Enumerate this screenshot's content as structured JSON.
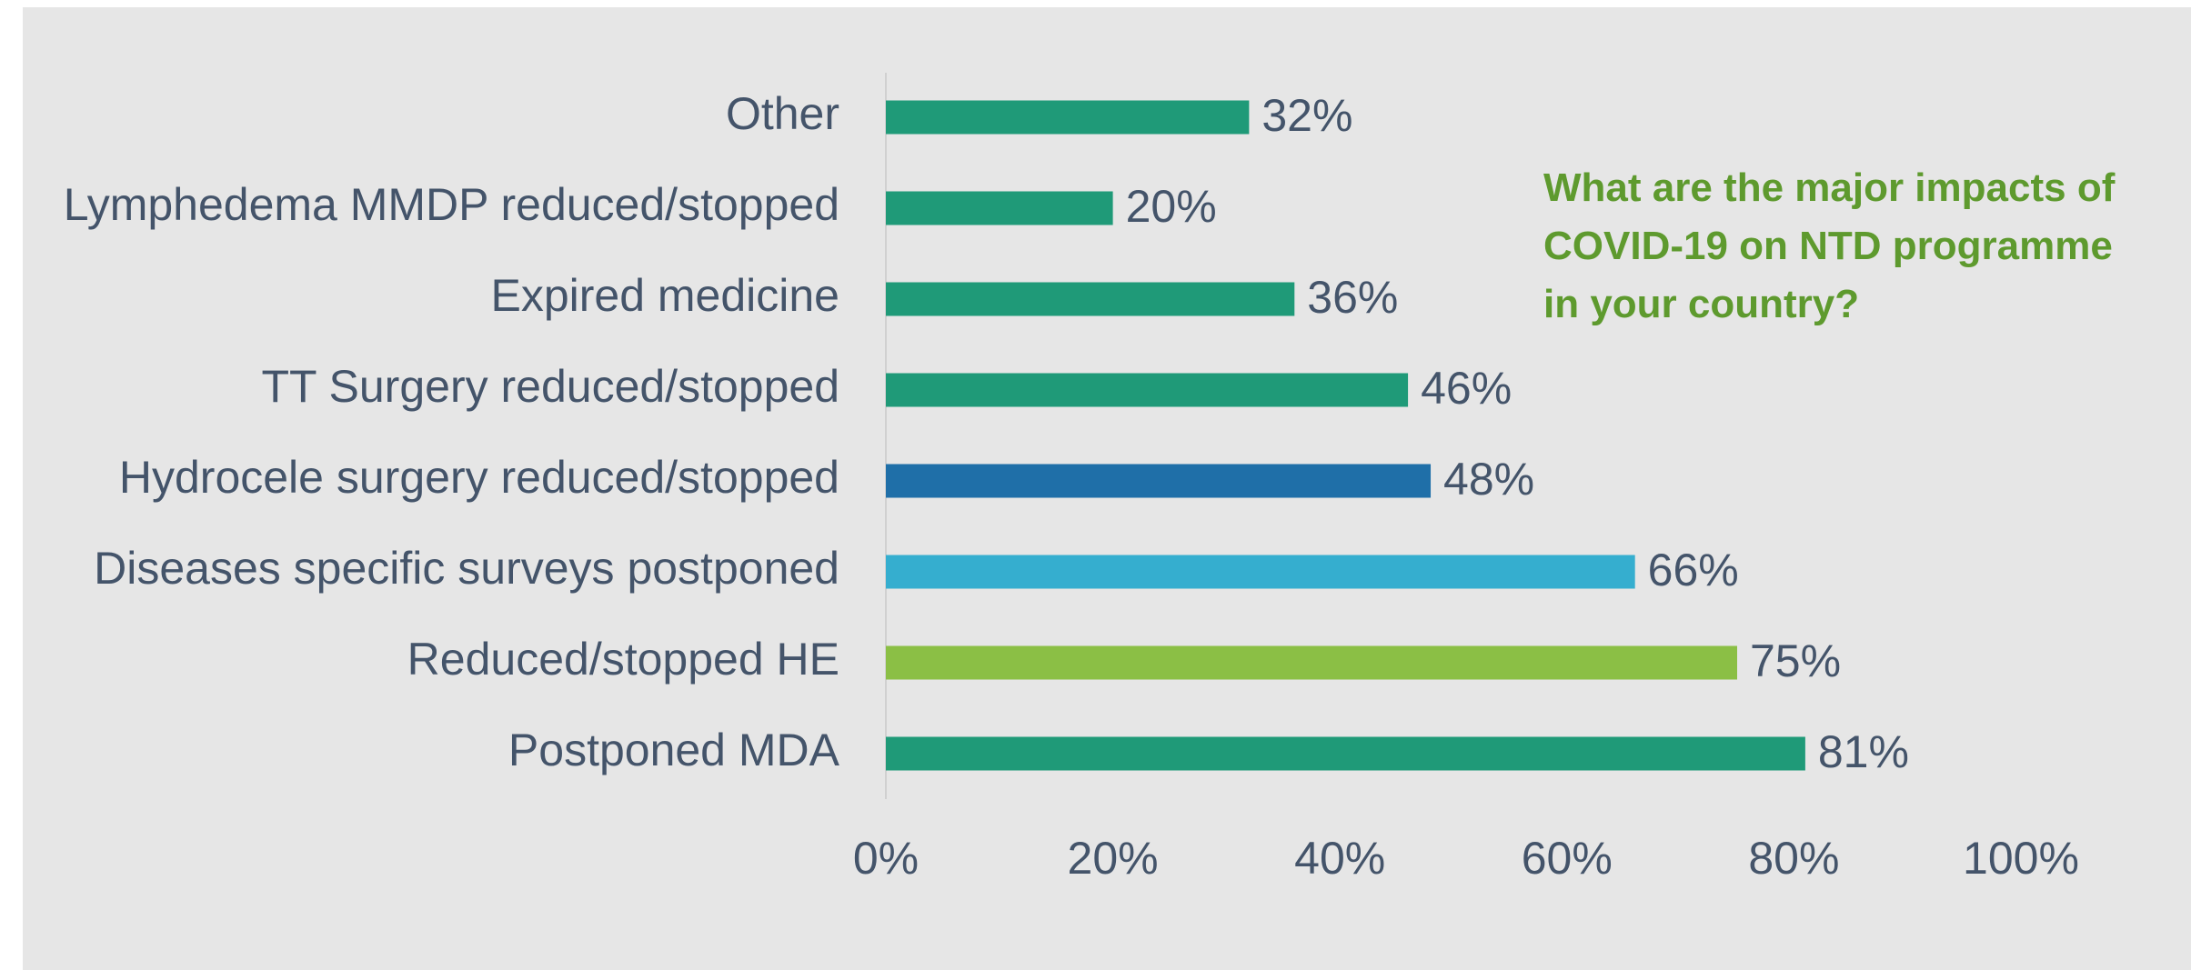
{
  "chart_data": {
    "type": "bar",
    "orientation": "horizontal",
    "title": "What are the major impacts of COVID-19 on NTD programme in your country?",
    "categories": [
      "Other",
      "Lymphedema MMDP reduced/stopped",
      "Expired medicine",
      "TT Surgery reduced/stopped",
      "Hydrocele surgery reduced/stopped",
      "Diseases specific surveys postponed",
      "Reduced/stopped HE",
      "Postponed MDA"
    ],
    "values": [
      32,
      20,
      36,
      46,
      48,
      66,
      75,
      81
    ],
    "value_labels": [
      "32%",
      "20%",
      "36%",
      "46%",
      "48%",
      "66%",
      "75%",
      "81%"
    ],
    "colors": [
      "#1f9a78",
      "#1f9a78",
      "#1f9a78",
      "#1f9a78",
      "#1f6fa8",
      "#35aecf",
      "#8bbf45",
      "#1f9a78"
    ],
    "xlim": [
      0,
      100
    ],
    "xticks": [
      {
        "value": 0,
        "label": "0%"
      },
      {
        "value": 20,
        "label": "20%"
      },
      {
        "value": 40,
        "label": "40%"
      },
      {
        "value": 60,
        "label": "60%"
      },
      {
        "value": 80,
        "label": "80%"
      },
      {
        "value": 100,
        "label": "100%"
      }
    ],
    "grid": false
  }
}
